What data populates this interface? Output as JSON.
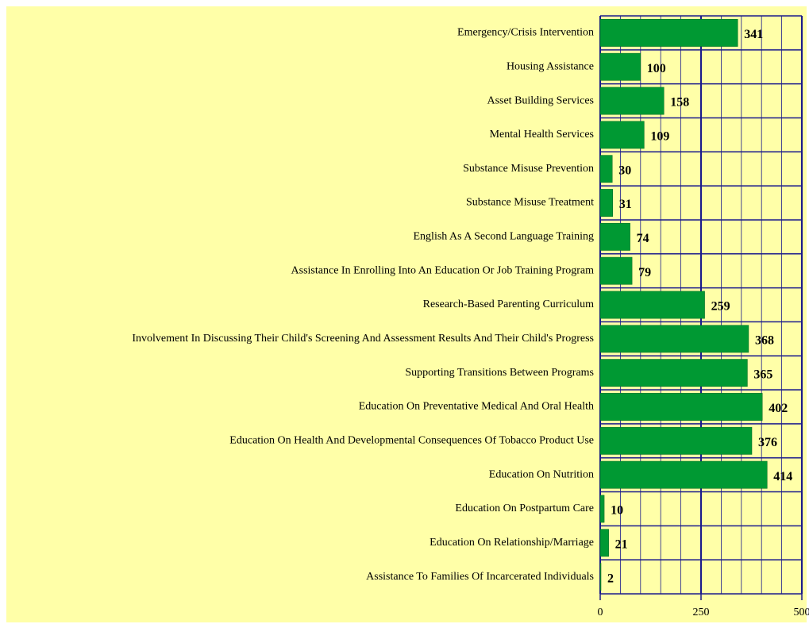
{
  "chart_data": {
    "type": "bar",
    "orientation": "horizontal",
    "categories": [
      "Emergency/Crisis Intervention",
      "Housing Assistance",
      "Asset Building Services",
      "Mental Health Services",
      "Substance Misuse Prevention",
      "Substance Misuse Treatment",
      "English As A Second Language Training",
      "Assistance In Enrolling Into An Education Or Job Training Program",
      "Research-Based Parenting Curriculum",
      "Involvement In Discussing Their Child's Screening And Assessment Results And Their Child's Progress",
      "Supporting Transitions Between Programs",
      "Education On Preventative Medical And Oral Health",
      "Education On Health And Developmental Consequences Of Tobacco Product Use",
      "Education On Nutrition",
      "Education On Postpartum Care",
      "Education On Relationship/Marriage",
      "Assistance To Families Of Incarcerated Individuals"
    ],
    "values": [
      341,
      100,
      158,
      109,
      30,
      31,
      74,
      79,
      259,
      368,
      365,
      402,
      376,
      414,
      10,
      21,
      2
    ],
    "color": "#009933",
    "xlim": [
      0,
      500
    ],
    "xticks": [
      0,
      250,
      500
    ],
    "xminor_ticks": [
      50,
      100,
      150,
      200,
      300,
      350,
      400,
      450
    ],
    "grid": true
  }
}
